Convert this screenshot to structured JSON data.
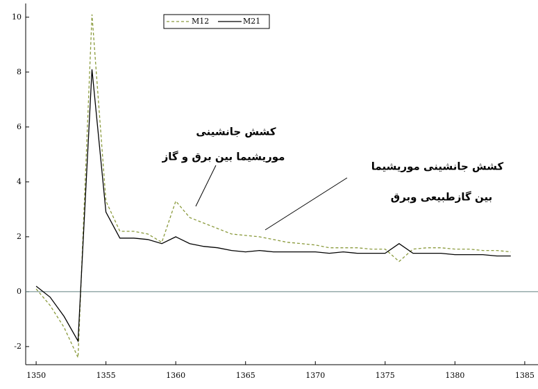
{
  "chart_data": {
    "type": "line",
    "x": [
      1350,
      1351,
      1352,
      1353,
      1354,
      1355,
      1356,
      1357,
      1358,
      1359,
      1360,
      1361,
      1362,
      1363,
      1364,
      1365,
      1366,
      1367,
      1368,
      1369,
      1370,
      1371,
      1372,
      1373,
      1374,
      1375,
      1376,
      1377,
      1378,
      1379,
      1380,
      1381,
      1382,
      1383,
      1384
    ],
    "series": [
      {
        "name": "M12",
        "color": "#8a9a3c",
        "line_style": "dashed",
        "values": [
          0.1,
          -0.5,
          -1.3,
          -2.4,
          10.1,
          3.3,
          2.2,
          2.2,
          2.1,
          1.8,
          3.3,
          2.7,
          2.5,
          2.3,
          2.1,
          2.05,
          2.0,
          1.9,
          1.8,
          1.75,
          1.7,
          1.6,
          1.6,
          1.6,
          1.55,
          1.55,
          1.1,
          1.55,
          1.6,
          1.6,
          1.55,
          1.55,
          1.5,
          1.5,
          1.45
        ]
      },
      {
        "name": "M21",
        "color": "#000000",
        "line_style": "solid",
        "values": [
          0.2,
          -0.2,
          -0.9,
          -1.8,
          8.1,
          2.9,
          1.95,
          1.95,
          1.9,
          1.75,
          2.0,
          1.75,
          1.65,
          1.6,
          1.5,
          1.45,
          1.5,
          1.45,
          1.45,
          1.45,
          1.45,
          1.4,
          1.45,
          1.4,
          1.4,
          1.4,
          1.75,
          1.4,
          1.4,
          1.4,
          1.35,
          1.35,
          1.35,
          1.3,
          1.3
        ]
      }
    ],
    "xlim": [
      1349.25,
      1385.95
    ],
    "ylim": [
      -2.66,
      10.5
    ],
    "xticks": [
      1350,
      1355,
      1360,
      1365,
      1370,
      1375,
      1380,
      1385
    ],
    "yticks": [
      -2,
      0,
      2,
      4,
      6,
      8,
      10
    ],
    "annotations": [
      "کشش جانشینی",
      "موریشیما بین برق و گاز",
      "کشش جانشینی موریشیما",
      "بین گازطبیعی وبرق"
    ],
    "legend": "top-center"
  }
}
